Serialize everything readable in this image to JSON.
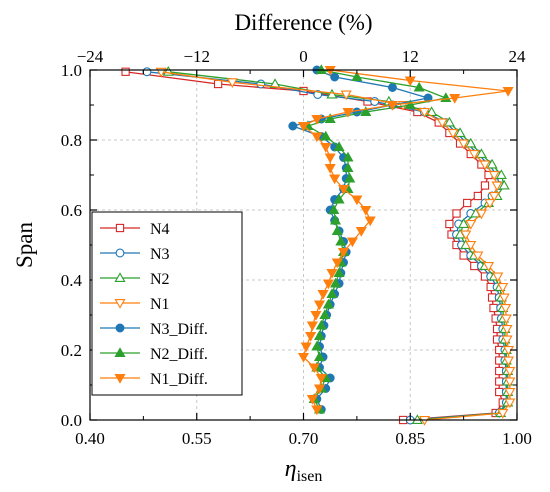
{
  "chart_data": {
    "type": "line",
    "x_axis": {
      "label": "η",
      "label_sub": "isen",
      "range": [
        0.4,
        1.0
      ],
      "ticks": [
        0.4,
        0.55,
        0.7,
        0.85,
        1.0
      ],
      "tick_labels": [
        "0.40",
        "0.55",
        "0.70",
        "0.85",
        "1.00"
      ]
    },
    "x2_axis": {
      "label": "Difference (%)",
      "range": [
        -24,
        24
      ],
      "ticks": [
        -24,
        -12,
        0,
        12,
        24
      ],
      "tick_labels": [
        "−24",
        "−12",
        "0",
        "12",
        "24"
      ]
    },
    "y_axis": {
      "label": "Span",
      "range": [
        0.0,
        1.0
      ],
      "ticks": [
        0.0,
        0.2,
        0.4,
        0.6,
        0.8,
        1.0
      ],
      "tick_labels": [
        "0.0",
        "0.2",
        "0.4",
        "0.6",
        "0.8",
        "1.0"
      ]
    },
    "grid": true,
    "legend": {
      "position": "bottom-left"
    },
    "series": [
      {
        "name": "N4",
        "axis": "bottom",
        "color": "#d62728",
        "marker": "square-open",
        "points": [
          [
            0.84,
            0.0
          ],
          [
            0.97,
            0.02
          ],
          [
            0.98,
            0.05
          ],
          [
            0.975,
            0.08
          ],
          [
            0.975,
            0.11
          ],
          [
            0.975,
            0.14
          ],
          [
            0.975,
            0.17
          ],
          [
            0.975,
            0.2
          ],
          [
            0.972,
            0.23
          ],
          [
            0.972,
            0.26
          ],
          [
            0.97,
            0.29
          ],
          [
            0.967,
            0.32
          ],
          [
            0.965,
            0.35
          ],
          [
            0.963,
            0.38
          ],
          [
            0.955,
            0.41
          ],
          [
            0.94,
            0.44
          ],
          [
            0.925,
            0.47
          ],
          [
            0.915,
            0.5
          ],
          [
            0.908,
            0.53
          ],
          [
            0.905,
            0.56
          ],
          [
            0.915,
            0.59
          ],
          [
            0.93,
            0.62
          ],
          [
            0.945,
            0.64
          ],
          [
            0.955,
            0.67
          ],
          [
            0.96,
            0.7
          ],
          [
            0.95,
            0.73
          ],
          [
            0.935,
            0.76
          ],
          [
            0.92,
            0.79
          ],
          [
            0.905,
            0.82
          ],
          [
            0.89,
            0.85
          ],
          [
            0.86,
            0.88
          ],
          [
            0.79,
            0.91
          ],
          [
            0.7,
            0.94
          ],
          [
            0.58,
            0.96
          ],
          [
            0.45,
            0.995
          ]
        ]
      },
      {
        "name": "N3",
        "axis": "bottom",
        "color": "#1f77b4",
        "marker": "circle-open",
        "points": [
          [
            0.85,
            0.0
          ],
          [
            0.975,
            0.02
          ],
          [
            0.985,
            0.05
          ],
          [
            0.985,
            0.08
          ],
          [
            0.985,
            0.11
          ],
          [
            0.985,
            0.14
          ],
          [
            0.983,
            0.17
          ],
          [
            0.983,
            0.2
          ],
          [
            0.98,
            0.23
          ],
          [
            0.98,
            0.26
          ],
          [
            0.978,
            0.29
          ],
          [
            0.977,
            0.32
          ],
          [
            0.975,
            0.35
          ],
          [
            0.972,
            0.38
          ],
          [
            0.963,
            0.41
          ],
          [
            0.95,
            0.44
          ],
          [
            0.935,
            0.47
          ],
          [
            0.922,
            0.5
          ],
          [
            0.915,
            0.53
          ],
          [
            0.918,
            0.56
          ],
          [
            0.935,
            0.59
          ],
          [
            0.955,
            0.62
          ],
          [
            0.965,
            0.64
          ],
          [
            0.975,
            0.67
          ],
          [
            0.972,
            0.7
          ],
          [
            0.96,
            0.73
          ],
          [
            0.945,
            0.76
          ],
          [
            0.93,
            0.79
          ],
          [
            0.915,
            0.82
          ],
          [
            0.9,
            0.85
          ],
          [
            0.87,
            0.88
          ],
          [
            0.8,
            0.91
          ],
          [
            0.72,
            0.93
          ],
          [
            0.64,
            0.96
          ],
          [
            0.48,
            0.995
          ]
        ]
      },
      {
        "name": "N2",
        "axis": "bottom",
        "color": "#2ca02c",
        "marker": "triangle-up-open",
        "points": [
          [
            0.86,
            0.0
          ],
          [
            0.977,
            0.02
          ],
          [
            0.987,
            0.05
          ],
          [
            0.987,
            0.08
          ],
          [
            0.987,
            0.11
          ],
          [
            0.987,
            0.14
          ],
          [
            0.985,
            0.17
          ],
          [
            0.985,
            0.2
          ],
          [
            0.983,
            0.23
          ],
          [
            0.983,
            0.26
          ],
          [
            0.981,
            0.29
          ],
          [
            0.98,
            0.32
          ],
          [
            0.978,
            0.35
          ],
          [
            0.976,
            0.38
          ],
          [
            0.968,
            0.41
          ],
          [
            0.955,
            0.44
          ],
          [
            0.94,
            0.47
          ],
          [
            0.928,
            0.5
          ],
          [
            0.92,
            0.53
          ],
          [
            0.925,
            0.56
          ],
          [
            0.942,
            0.59
          ],
          [
            0.96,
            0.62
          ],
          [
            0.972,
            0.64
          ],
          [
            0.982,
            0.67
          ],
          [
            0.978,
            0.7
          ],
          [
            0.965,
            0.73
          ],
          [
            0.95,
            0.76
          ],
          [
            0.935,
            0.79
          ],
          [
            0.92,
            0.82
          ],
          [
            0.905,
            0.85
          ],
          [
            0.88,
            0.88
          ],
          [
            0.82,
            0.91
          ],
          [
            0.74,
            0.93
          ],
          [
            0.66,
            0.96
          ],
          [
            0.51,
            0.995
          ]
        ]
      },
      {
        "name": "N1",
        "axis": "bottom",
        "color": "#ff7f0e",
        "marker": "triangle-down-open",
        "points": [
          [
            0.87,
            0.0
          ],
          [
            0.98,
            0.02
          ],
          [
            0.99,
            0.05
          ],
          [
            0.99,
            0.08
          ],
          [
            0.99,
            0.11
          ],
          [
            0.99,
            0.14
          ],
          [
            0.988,
            0.17
          ],
          [
            0.988,
            0.2
          ],
          [
            0.986,
            0.23
          ],
          [
            0.986,
            0.26
          ],
          [
            0.985,
            0.29
          ],
          [
            0.984,
            0.32
          ],
          [
            0.982,
            0.35
          ],
          [
            0.98,
            0.38
          ],
          [
            0.973,
            0.41
          ],
          [
            0.96,
            0.44
          ],
          [
            0.945,
            0.47
          ],
          [
            0.935,
            0.5
          ],
          [
            0.928,
            0.53
          ],
          [
            0.935,
            0.56
          ],
          [
            0.95,
            0.59
          ],
          [
            0.962,
            0.62
          ],
          [
            0.968,
            0.64
          ],
          [
            0.972,
            0.67
          ],
          [
            0.968,
            0.7
          ],
          [
            0.955,
            0.73
          ],
          [
            0.94,
            0.76
          ],
          [
            0.925,
            0.79
          ],
          [
            0.91,
            0.82
          ],
          [
            0.895,
            0.85
          ],
          [
            0.87,
            0.88
          ],
          [
            0.84,
            0.9
          ],
          [
            0.76,
            0.93
          ],
          [
            0.6,
            0.965
          ],
          [
            0.5,
            0.995
          ]
        ]
      },
      {
        "name": "N3_Diff.",
        "axis": "top",
        "color": "#1f77b4",
        "marker": "circle-filled",
        "points": [
          [
            2.0,
            0.03
          ],
          [
            1.5,
            0.06
          ],
          [
            2.5,
            0.09
          ],
          [
            3.0,
            0.12
          ],
          [
            1.8,
            0.15
          ],
          [
            2.2,
            0.18
          ],
          [
            1.8,
            0.21
          ],
          [
            2.0,
            0.24
          ],
          [
            2.3,
            0.27
          ],
          [
            2.6,
            0.3
          ],
          [
            3.0,
            0.33
          ],
          [
            3.5,
            0.36
          ],
          [
            4.0,
            0.39
          ],
          [
            4.2,
            0.42
          ],
          [
            4.5,
            0.45
          ],
          [
            4.8,
            0.48
          ],
          [
            4.5,
            0.51
          ],
          [
            4.0,
            0.54
          ],
          [
            3.5,
            0.57
          ],
          [
            3.0,
            0.6
          ],
          [
            3.5,
            0.63
          ],
          [
            4.5,
            0.66
          ],
          [
            4.8,
            0.69
          ],
          [
            4.8,
            0.72
          ],
          [
            4.5,
            0.75
          ],
          [
            3.5,
            0.78
          ],
          [
            2.0,
            0.81
          ],
          [
            -1.2,
            0.84
          ],
          [
            2.0,
            0.86
          ],
          [
            6.0,
            0.88
          ],
          [
            10.0,
            0.9
          ],
          [
            14.0,
            0.92
          ],
          [
            10.0,
            0.95
          ],
          [
            3.5,
            0.98
          ],
          [
            1.5,
            1.0
          ]
        ]
      },
      {
        "name": "N2_Diff.",
        "axis": "top",
        "color": "#2ca02c",
        "marker": "triangle-up-filled",
        "points": [
          [
            1.8,
            0.03
          ],
          [
            1.2,
            0.06
          ],
          [
            2.0,
            0.09
          ],
          [
            2.5,
            0.12
          ],
          [
            1.5,
            0.15
          ],
          [
            1.8,
            0.18
          ],
          [
            1.5,
            0.21
          ],
          [
            1.8,
            0.24
          ],
          [
            2.0,
            0.27
          ],
          [
            2.4,
            0.3
          ],
          [
            2.8,
            0.33
          ],
          [
            3.2,
            0.36
          ],
          [
            3.6,
            0.39
          ],
          [
            4.0,
            0.42
          ],
          [
            4.2,
            0.45
          ],
          [
            4.5,
            0.48
          ],
          [
            4.2,
            0.51
          ],
          [
            3.8,
            0.54
          ],
          [
            3.6,
            0.57
          ],
          [
            3.4,
            0.6
          ],
          [
            4.0,
            0.63
          ],
          [
            5.0,
            0.66
          ],
          [
            5.2,
            0.69
          ],
          [
            5.0,
            0.72
          ],
          [
            5.0,
            0.75
          ],
          [
            4.0,
            0.78
          ],
          [
            2.5,
            0.81
          ],
          [
            0.5,
            0.84
          ],
          [
            3.0,
            0.86
          ],
          [
            7.0,
            0.88
          ],
          [
            12.0,
            0.9
          ],
          [
            16.0,
            0.92
          ],
          [
            13.0,
            0.95
          ],
          [
            6.0,
            0.98
          ],
          [
            2.0,
            1.0
          ]
        ]
      },
      {
        "name": "N1_Diff.",
        "axis": "top",
        "color": "#ff7f0e",
        "marker": "triangle-down-filled",
        "points": [
          [
            1.5,
            0.03
          ],
          [
            1.0,
            0.06
          ],
          [
            1.8,
            0.09
          ],
          [
            2.0,
            0.12
          ],
          [
            1.2,
            0.15
          ],
          [
            0.0,
            0.18
          ],
          [
            0.3,
            0.21
          ],
          [
            0.8,
            0.24
          ],
          [
            1.0,
            0.27
          ],
          [
            1.4,
            0.3
          ],
          [
            1.8,
            0.33
          ],
          [
            2.2,
            0.36
          ],
          [
            2.8,
            0.39
          ],
          [
            3.2,
            0.42
          ],
          [
            3.8,
            0.45
          ],
          [
            4.5,
            0.48
          ],
          [
            5.5,
            0.51
          ],
          [
            6.5,
            0.54
          ],
          [
            7.5,
            0.57
          ],
          [
            7.0,
            0.6
          ],
          [
            6.0,
            0.63
          ],
          [
            4.5,
            0.66
          ],
          [
            3.5,
            0.69
          ],
          [
            3.0,
            0.72
          ],
          [
            3.0,
            0.75
          ],
          [
            2.5,
            0.78
          ],
          [
            1.5,
            0.81
          ],
          [
            0.0,
            0.84
          ],
          [
            1.5,
            0.86
          ],
          [
            5.0,
            0.88
          ],
          [
            10.0,
            0.9
          ],
          [
            17.0,
            0.92
          ],
          [
            23.0,
            0.94
          ],
          [
            12.0,
            0.97
          ],
          [
            3.0,
            1.0
          ]
        ]
      }
    ]
  }
}
